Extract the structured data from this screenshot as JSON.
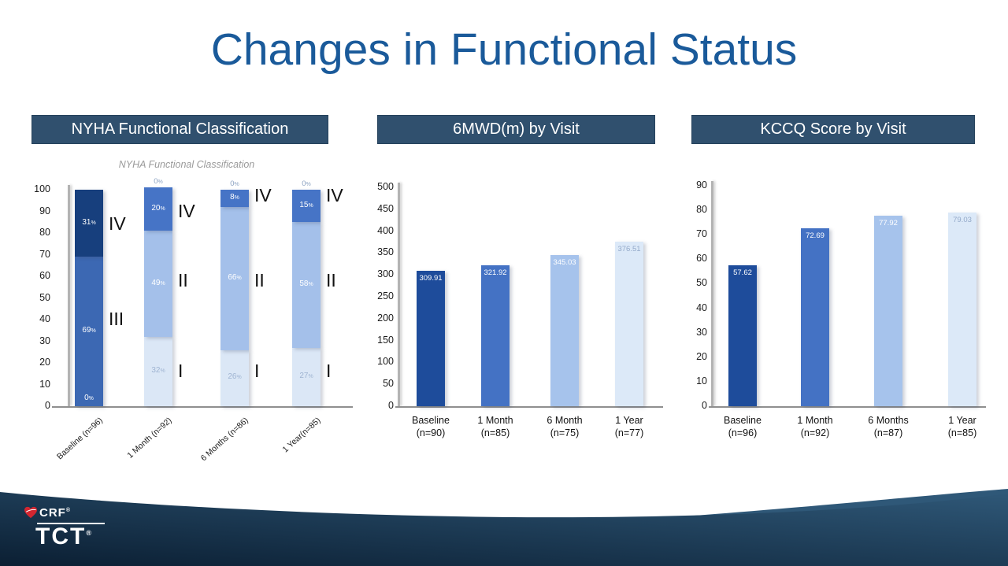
{
  "title": "Changes in Functional Status",
  "panels": [
    {
      "header": "NYHA Functional Classification",
      "subtitle": "NYHA Functional Classification"
    },
    {
      "header": "6MWD(m) by Visit"
    },
    {
      "header": "KCCQ Score by Visit"
    }
  ],
  "footer": {
    "brand_top": "CRF",
    "brand_main": "TCT",
    "registered": "®"
  },
  "colors": {
    "title": "#1A5A9A",
    "header_bg": "#30506E",
    "footer_navy": "#0B1F33",
    "footer_navy_light": "#2F5878",
    "heart_red": "#D22630",
    "light_label_gray": "#9FB4D2",
    "above_label_gray": "#8CA3C2"
  },
  "chart_data": [
    {
      "id": "nyha",
      "type": "stacked-bar",
      "title": "NYHA Functional Classification",
      "ylabel": "",
      "ylim": [
        0,
        100
      ],
      "ytick_step": 10,
      "grid": false,
      "legend": "none",
      "categories": [
        "Baseline (n=96)",
        "1 Month (n=92)",
        "6 Months (n=86)",
        "1 Year(n=85)"
      ],
      "palette": {
        "class4_dark": "#173F7D",
        "class3": "#3C68B3",
        "class4": "#4674C6",
        "class2": "#A4C0EA",
        "class1": "#DBE7F6"
      },
      "bars": [
        {
          "category": "Baseline (n=96)",
          "above_label": null,
          "bottom_label": "0",
          "segments": [
            {
              "cls": "III",
              "value": 69,
              "color": "class3",
              "label": "69",
              "label_color": "#FFFFFF"
            },
            {
              "cls": "IV",
              "value": 31,
              "color": "class4_dark",
              "label": "31",
              "label_color": "#FFFFFF"
            }
          ],
          "annotations": [
            {
              "text": "IV",
              "value": 84
            },
            {
              "text": "III",
              "value": 40
            }
          ]
        },
        {
          "category": "1 Month (n=92)",
          "above_label": "0",
          "bottom_label": null,
          "segments": [
            {
              "cls": "I",
              "value": 32,
              "color": "class1",
              "label": "32",
              "label_color": "#9FB4D2"
            },
            {
              "cls": "II",
              "value": 49,
              "color": "class2",
              "label": "49",
              "label_color": "#FFFFFF"
            },
            {
              "cls": "IV",
              "value": 20,
              "color": "class4",
              "label": "20",
              "label_color": "#FFFFFF"
            }
          ],
          "annotations": [
            {
              "text": "IV",
              "value": 90
            },
            {
              "text": "II",
              "value": 58
            },
            {
              "text": "I",
              "value": 16
            }
          ]
        },
        {
          "category": "6 Months (n=86)",
          "above_label": "0",
          "bottom_label": null,
          "segments": [
            {
              "cls": "I",
              "value": 26,
              "color": "class1",
              "label": "26",
              "label_color": "#9FB4D2"
            },
            {
              "cls": "II",
              "value": 66,
              "color": "class2",
              "label": "66",
              "label_color": "#FFFFFF"
            },
            {
              "cls": "IV",
              "value": 8,
              "color": "class4",
              "label": "8",
              "label_color": "#FFFFFF"
            }
          ],
          "annotations": [
            {
              "text": "IV",
              "value": 97
            },
            {
              "text": "II",
              "value": 58
            },
            {
              "text": "I",
              "value": 16
            }
          ]
        },
        {
          "category": "1 Year(n=85)",
          "above_label": "0",
          "bottom_label": null,
          "segments": [
            {
              "cls": "I",
              "value": 27,
              "color": "class1",
              "label": "27",
              "label_color": "#9FB4D2"
            },
            {
              "cls": "II",
              "value": 58,
              "color": "class2",
              "label": "58",
              "label_color": "#FFFFFF"
            },
            {
              "cls": "IV",
              "value": 15,
              "color": "class4",
              "label": "15",
              "label_color": "#FFFFFF"
            }
          ],
          "annotations": [
            {
              "text": "IV",
              "value": 97
            },
            {
              "text": "II",
              "value": 58
            },
            {
              "text": "I",
              "value": 16
            }
          ]
        }
      ]
    },
    {
      "id": "mwd",
      "type": "bar",
      "title": "6MWD(m) by Visit",
      "ylabel": "",
      "ylim": [
        0,
        500
      ],
      "ytick_step": 50,
      "grid": false,
      "legend": "none",
      "categories": [
        [
          "Baseline",
          "(n=90)"
        ],
        [
          "1 Month",
          "(n=85)"
        ],
        [
          "6 Month",
          "(n=75)"
        ],
        [
          "1 Year",
          "(n=77)"
        ]
      ],
      "values": [
        309.91,
        321.92,
        345.03,
        376.51
      ],
      "value_labels": [
        "309.91",
        "321.92",
        "345.03",
        "376.51"
      ],
      "bar_colors": [
        "#1E4C9B",
        "#4472C4",
        "#A6C3EC",
        "#DCE9F8"
      ],
      "value_label_colors": [
        "#FFFFFF",
        "#FFFFFF",
        "#FFFFFF",
        "#93A9C9"
      ]
    },
    {
      "id": "kccq",
      "type": "bar",
      "title": "KCCQ Score by Visit",
      "ylabel": "",
      "ylim": [
        0,
        90
      ],
      "ytick_step": 10,
      "grid": false,
      "legend": "none",
      "categories": [
        [
          "Baseline",
          "(n=96)"
        ],
        [
          "1 Month",
          "(n=92)"
        ],
        [
          "6 Months",
          "(n=87)"
        ],
        [
          "1 Year",
          "(n=85)"
        ]
      ],
      "values": [
        57.62,
        72.69,
        77.92,
        79.03
      ],
      "value_labels": [
        "57.62",
        "72.69",
        "77.92",
        "79.03"
      ],
      "bar_colors": [
        "#1E4C9B",
        "#4472C4",
        "#A6C3EC",
        "#DCE9F8"
      ],
      "value_label_colors": [
        "#FFFFFF",
        "#FFFFFF",
        "#FFFFFF",
        "#93A9C9"
      ]
    }
  ]
}
